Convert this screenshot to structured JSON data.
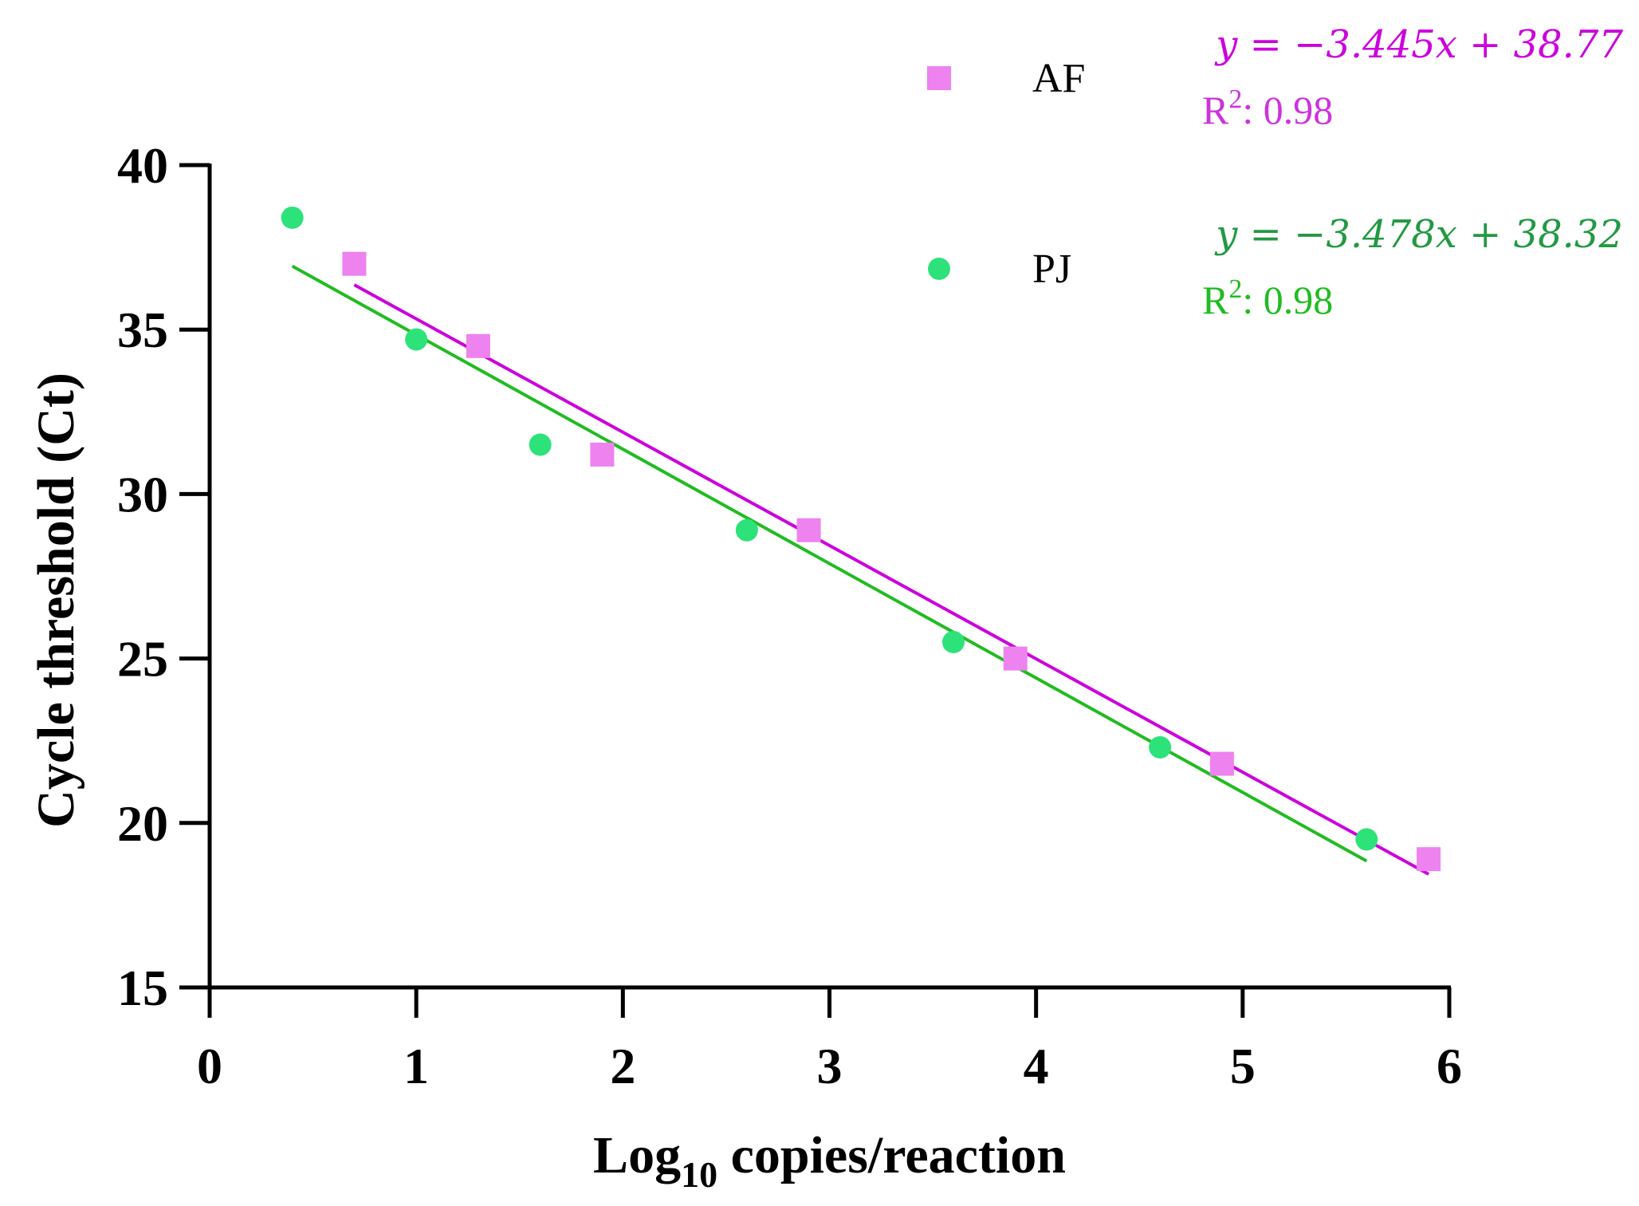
{
  "chart_data": {
    "type": "scatter",
    "xlabel": "copies/reaction",
    "xlabel_prefix": "Log",
    "xlabel_subscript": "10",
    "ylabel": "Cycle threshold (Ct)",
    "xlim": [
      0,
      6
    ],
    "ylim": [
      15,
      40
    ],
    "xticks": [
      0,
      1,
      2,
      3,
      4,
      5,
      6
    ],
    "yticks": [
      15,
      20,
      25,
      30,
      35,
      40
    ],
    "legend_position": "top-right",
    "series": [
      {
        "name": "AF",
        "marker": "square",
        "color": "#ee82ee",
        "line_color": "#cc00dd",
        "points": [
          [
            0.7,
            37.0
          ],
          [
            1.3,
            34.5
          ],
          [
            1.9,
            31.2
          ],
          [
            2.9,
            28.9
          ],
          [
            3.9,
            25.0
          ],
          [
            4.9,
            21.8
          ],
          [
            5.9,
            18.9
          ]
        ],
        "fit": {
          "slope": -3.445,
          "intercept": 38.77,
          "x_range": [
            0.7,
            5.9
          ]
        },
        "equation": "y = −3.445x + 38.77",
        "r2_label": "R",
        "r2_sup": "2",
        "r2_value": ": 0.98",
        "equation_color": "#cc00dd",
        "r2_color": "#cc33dd"
      },
      {
        "name": "PJ",
        "marker": "circle",
        "color": "#2ee27a",
        "line_color": "#22bb22",
        "points": [
          [
            0.4,
            38.4
          ],
          [
            1.0,
            34.7
          ],
          [
            1.6,
            31.5
          ],
          [
            2.6,
            28.9
          ],
          [
            3.6,
            25.5
          ],
          [
            4.6,
            22.3
          ],
          [
            5.6,
            19.5
          ]
        ],
        "fit": {
          "slope": -3.478,
          "intercept": 38.32,
          "x_range": [
            0.4,
            5.6
          ]
        },
        "equation": "y = −3.478x + 38.32",
        "r2_label": "R",
        "r2_sup": "2",
        "r2_value": ": 0.98",
        "equation_color": "#229944",
        "r2_color": "#22bb22"
      }
    ]
  }
}
